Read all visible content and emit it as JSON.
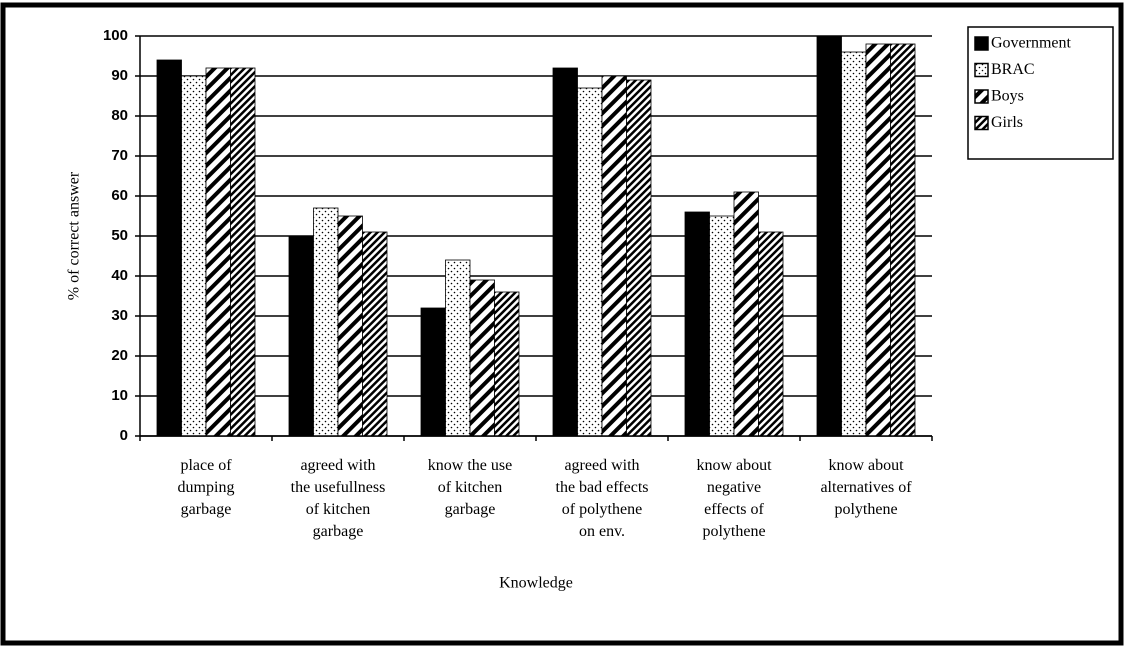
{
  "chart_data": {
    "type": "bar",
    "categories": [
      "place of\ndumping\ngarbage",
      "agreed with\nthe usefullness\nof kitchen\ngarbage",
      "know the use\nof kitchen\ngarbage",
      "agreed with\nthe bad effects\nof polythene\non env.",
      "know about\nnegative\neffects of\npolythene",
      "know about\nalternatives of\npolythene"
    ],
    "series": [
      {
        "name": "Government",
        "color": "#000000",
        "pattern": "solid",
        "values": [
          94,
          50,
          32,
          92,
          56,
          100
        ]
      },
      {
        "name": "BRAC",
        "color": "#000000",
        "pattern": "dots",
        "values": [
          90,
          57,
          44,
          87,
          55,
          96
        ]
      },
      {
        "name": "Boys",
        "color": "#000000",
        "pattern": "wide-hatch",
        "values": [
          92,
          55,
          39,
          90,
          61,
          98
        ]
      },
      {
        "name": "Girls",
        "color": "#000000",
        "pattern": "dense-hatch",
        "values": [
          92,
          51,
          36,
          89,
          51,
          98
        ]
      }
    ],
    "xlabel": "Knowledge",
    "ylabel": "% of correct answer",
    "ylim": [
      0,
      100
    ],
    "yticks": [
      0,
      10,
      20,
      30,
      40,
      50,
      60,
      70,
      80,
      90,
      100
    ],
    "grid": true,
    "legend": "upper right"
  }
}
